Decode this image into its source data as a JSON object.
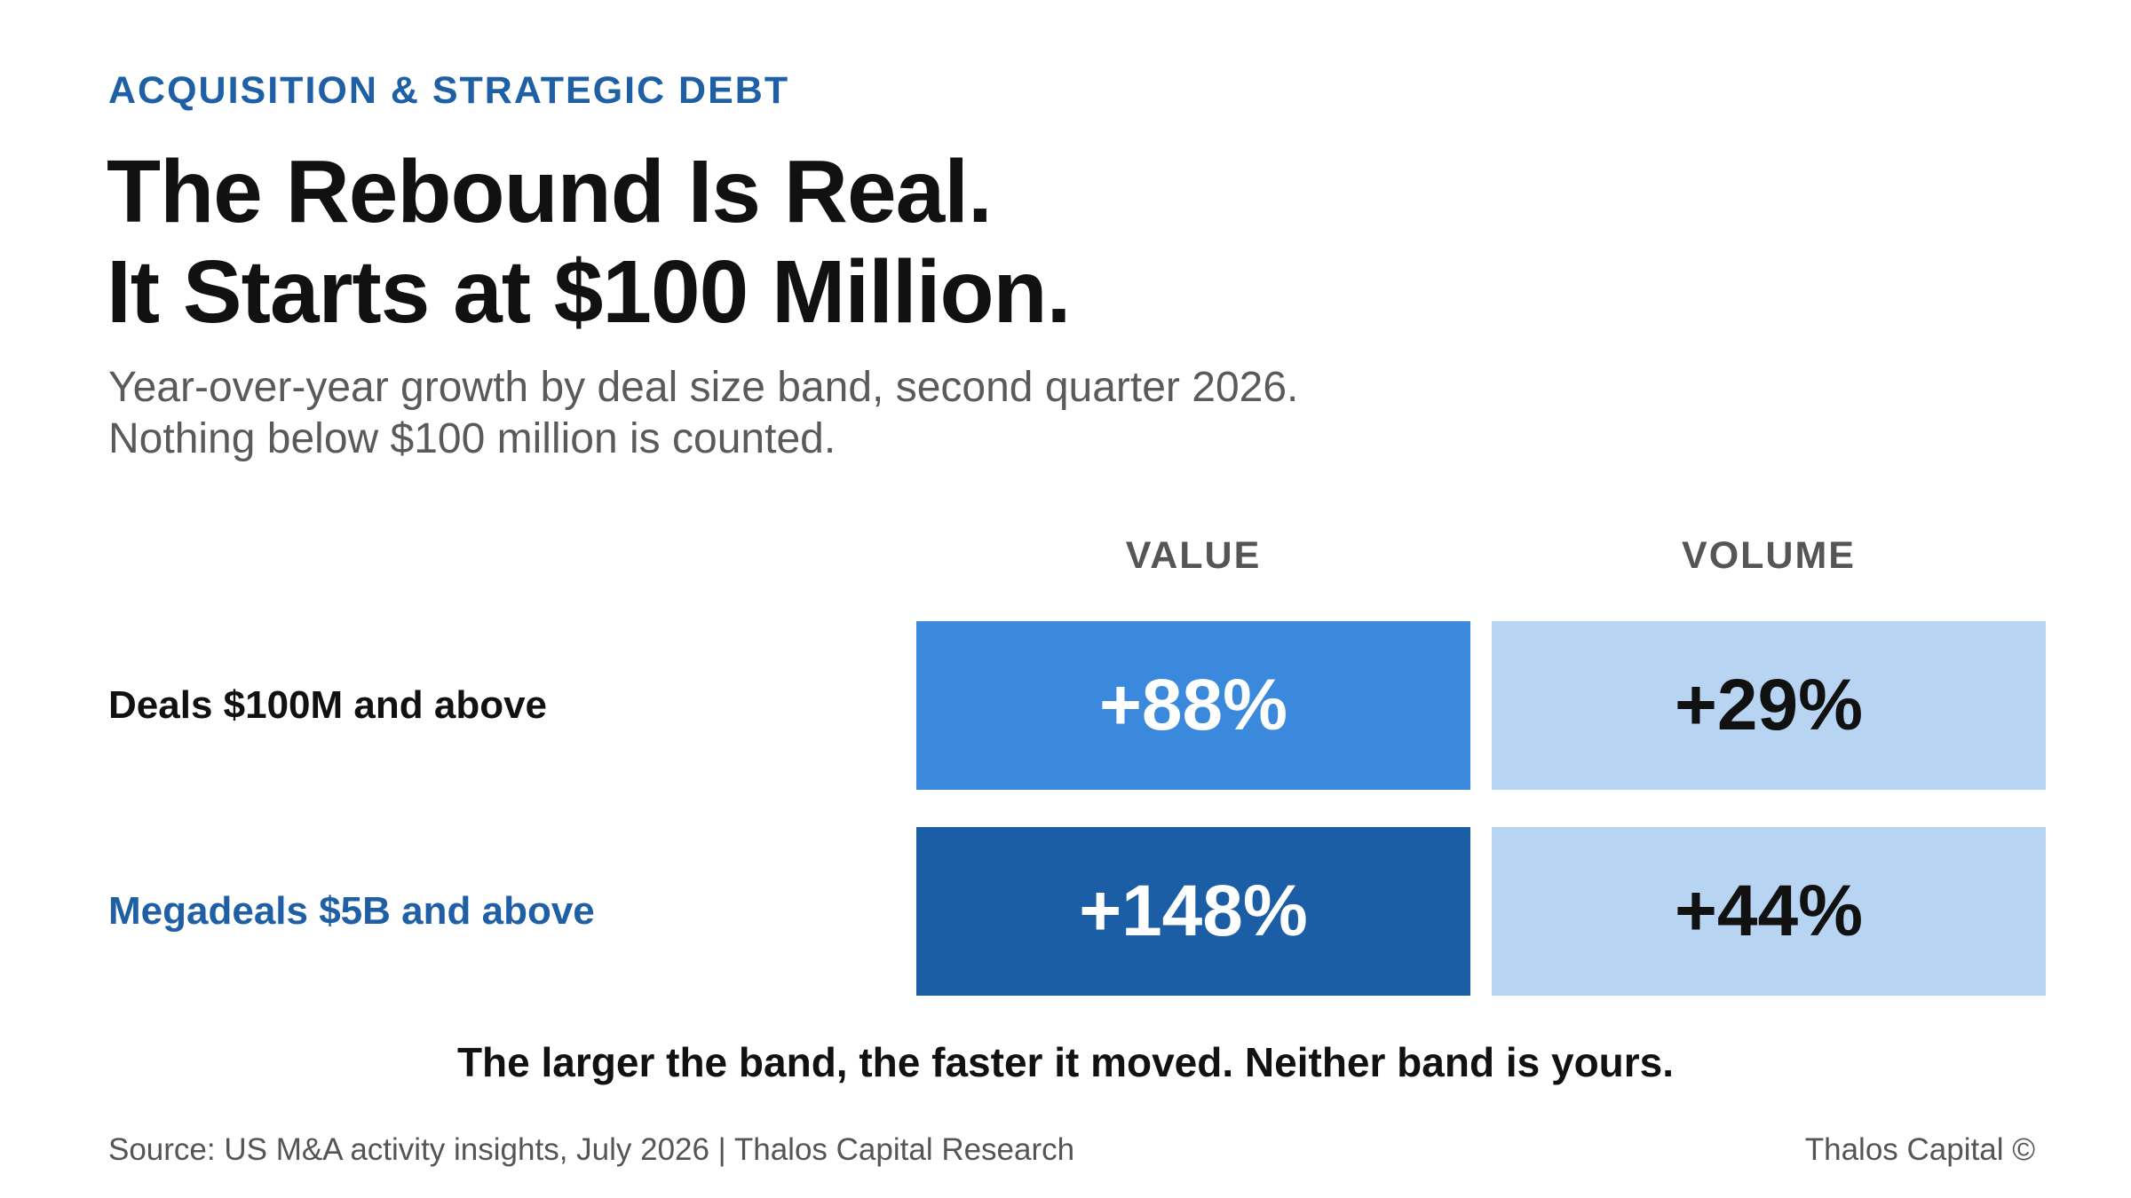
{
  "header": {
    "eyebrow": "ACQUISITION & STRATEGIC DEBT",
    "title_line1": "The Rebound Is Real.",
    "title_line2": "It Starts at $100 Million.",
    "subtitle_line1": "Year-over-year growth by deal size band, second quarter 2026.",
    "subtitle_line2": "Nothing below $100 million is counted."
  },
  "chart_data": {
    "type": "table",
    "columns": [
      "VALUE",
      "VOLUME"
    ],
    "rows": [
      {
        "label": "Deals $100M and above",
        "label_color": "#111111",
        "values": [
          88,
          29
        ],
        "display": [
          "+88%",
          "+29%"
        ],
        "fills": [
          "#3a89dd",
          "#b7d5f3"
        ],
        "text_colors": [
          "#ffffff",
          "#111111"
        ]
      },
      {
        "label": "Megadeals $5B and above",
        "label_color": "#1f5fa6",
        "values": [
          148,
          44
        ],
        "display": [
          "+148%",
          "+44%"
        ],
        "fills": [
          "#1b5ea6",
          "#b7d5f3"
        ],
        "text_colors": [
          "#ffffff",
          "#111111"
        ]
      }
    ],
    "unit": "%"
  },
  "takeaway": "The larger the band, the faster it moved. Neither band is yours.",
  "footer": {
    "source": "Source: US M&A activity insights, July 2026 | Thalos Capital Research",
    "brand": "Thalos Capital ©"
  },
  "colors": {
    "accent": "#1f5fa6",
    "value_mid": "#3a89dd",
    "value_dark": "#1b5ea6",
    "volume_light": "#b7d5f3"
  }
}
